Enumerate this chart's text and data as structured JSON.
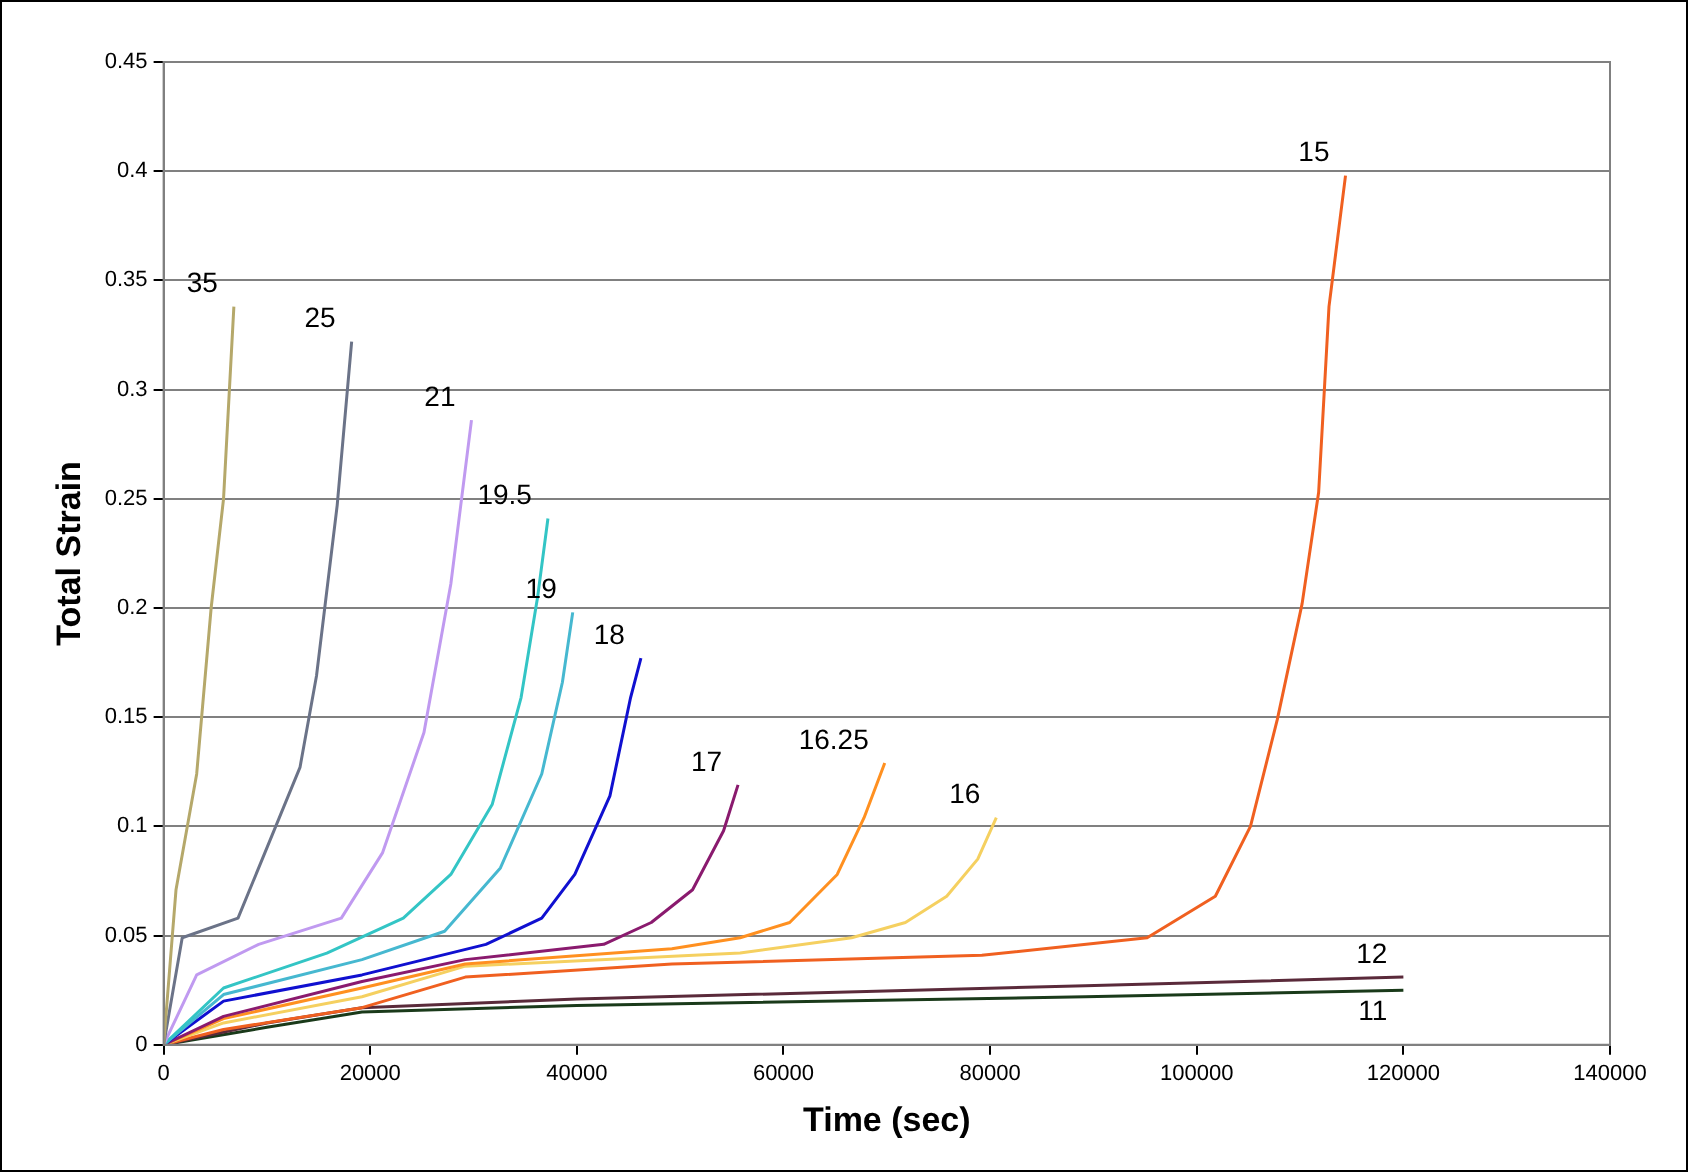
{
  "chart_data": {
    "type": "line",
    "xlabel": "Time (sec)",
    "ylabel": "Total Strain",
    "xlim": [
      0,
      140000
    ],
    "xticks": [
      0,
      20000,
      40000,
      60000,
      80000,
      100000,
      120000,
      140000
    ],
    "ylim": [
      0,
      0.45
    ],
    "yticks": [
      0,
      0.05,
      0.1,
      0.15,
      0.2,
      0.25,
      0.3,
      0.35,
      0.4,
      0.45
    ],
    "grid": "y",
    "legend": false,
    "marker": "none",
    "line_style": "solid",
    "series": [
      {
        "name": "35",
        "color": "#b5a86a",
        "x": [
          0,
          1200,
          3200,
          4600,
          5800,
          6800
        ],
        "values": [
          0,
          0.071,
          0.124,
          0.2,
          0.25,
          0.338
        ]
      },
      {
        "name": "25",
        "color": "#6b7388",
        "x": [
          0,
          1800,
          7200,
          11200,
          13200,
          14800,
          16800,
          18200
        ],
        "values": [
          0,
          0.049,
          0.058,
          0.104,
          0.127,
          0.169,
          0.247,
          0.322
        ]
      },
      {
        "name": "21",
        "color": "#c09af0",
        "x": [
          0,
          3200,
          9200,
          17200,
          21200,
          25200,
          27800,
          29800
        ],
        "values": [
          0,
          0.032,
          0.046,
          0.058,
          0.088,
          0.143,
          0.211,
          0.286
        ]
      },
      {
        "name": "19.5",
        "color": "#33c5c5",
        "x": [
          0,
          5800,
          15800,
          23200,
          27800,
          31800,
          34600,
          36200,
          37200
        ],
        "values": [
          0,
          0.026,
          0.042,
          0.058,
          0.078,
          0.11,
          0.159,
          0.205,
          0.241
        ]
      },
      {
        "name": "19",
        "color": "#46b8d0",
        "x": [
          0,
          5800,
          19200,
          27200,
          32600,
          36600,
          38600,
          39600
        ],
        "values": [
          0,
          0.023,
          0.039,
          0.052,
          0.081,
          0.124,
          0.166,
          0.198
        ]
      },
      {
        "name": "18",
        "color": "#1010d0",
        "x": [
          0,
          5800,
          19200,
          31200,
          36600,
          39800,
          43200,
          45200,
          46200
        ],
        "values": [
          0,
          0.02,
          0.032,
          0.046,
          0.058,
          0.078,
          0.114,
          0.159,
          0.177
        ]
      },
      {
        "name": "17",
        "color": "#8a1a6e",
        "x": [
          0,
          5800,
          19200,
          29200,
          42600,
          47200,
          51200,
          54200,
          55600
        ],
        "values": [
          0,
          0.013,
          0.029,
          0.039,
          0.046,
          0.056,
          0.071,
          0.098,
          0.119
        ]
      },
      {
        "name": "16.25",
        "color": "#ff9020",
        "x": [
          0,
          5800,
          19200,
          29200,
          49200,
          55800,
          60600,
          65200,
          67800,
          69800
        ],
        "values": [
          0,
          0.012,
          0.026,
          0.037,
          0.044,
          0.049,
          0.056,
          0.078,
          0.104,
          0.129
        ]
      },
      {
        "name": "16",
        "color": "#f5d060",
        "x": [
          0,
          5800,
          19200,
          29200,
          55800,
          66600,
          71800,
          75800,
          78800,
          80600
        ],
        "values": [
          0,
          0.01,
          0.022,
          0.036,
          0.042,
          0.049,
          0.056,
          0.068,
          0.085,
          0.104
        ]
      },
      {
        "name": "15",
        "color": "#f06020",
        "x": [
          0,
          5800,
          19200,
          29200,
          49200,
          79200,
          95200,
          101800,
          105200,
          107800,
          110200,
          111800,
          112800,
          114400
        ],
        "values": [
          0,
          0.007,
          0.017,
          0.031,
          0.037,
          0.041,
          0.049,
          0.068,
          0.1,
          0.149,
          0.202,
          0.253,
          0.338,
          0.398
        ]
      },
      {
        "name": "12",
        "color": "#5a2a3a",
        "x": [
          0,
          10000,
          19200,
          40000,
          89200,
          120000
        ],
        "values": [
          0,
          0.01,
          0.017,
          0.021,
          0.027,
          0.031
        ]
      },
      {
        "name": "11",
        "color": "#1a3a1a",
        "x": [
          0,
          10000,
          19200,
          40000,
          89200,
          120000
        ],
        "values": [
          0,
          0.008,
          0.015,
          0.018,
          0.022,
          0.025
        ]
      }
    ]
  }
}
